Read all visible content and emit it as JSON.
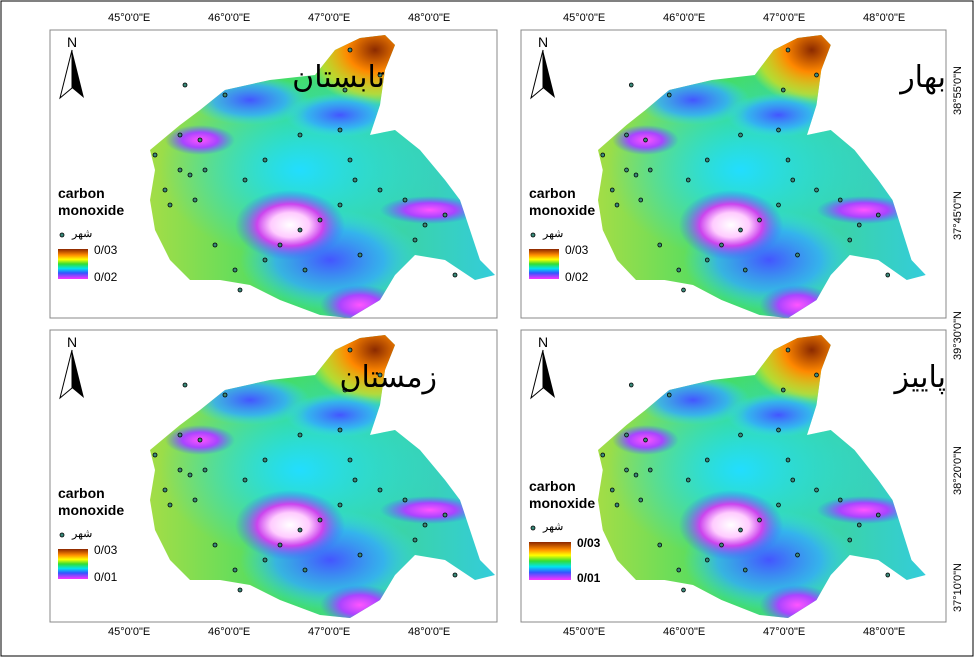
{
  "top_axis_labels": [
    "45°0'0\"E",
    "46°0'0\"E",
    "47°0'0\"E",
    "48°0'0\"E",
    "45°0'0\"E",
    "46°0'0\"E",
    "47°0'0\"E",
    "48°0'0\"E"
  ],
  "bottom_axis_labels": [
    "45°0'0\"E",
    "46°0'0\"E",
    "47°0'0\"E",
    "48°0'0\"E",
    "45°0'0\"E",
    "46°0'0\"E",
    "47°0'0\"E",
    "48°0'0\"E"
  ],
  "right_axis_labels": [
    "38°55'0\"N",
    "37°45'0\"N",
    "39°30'0\"N",
    "38°20'0\"N",
    "37°10'0\"N"
  ],
  "panels": [
    {
      "season": "تابستان",
      "north": "N",
      "legend_title": "carbon monoxide",
      "city_label": "شهر",
      "high": "0/03",
      "low": "0/02"
    },
    {
      "season": "بهار",
      "north": "N",
      "legend_title": "carbon monoxide",
      "city_label": "شهر",
      "high": "0/03",
      "low": "0/02"
    },
    {
      "season": "زمستان",
      "north": "N",
      "legend_title": "carbon monoxide",
      "city_label": "شهر",
      "high": "0/03",
      "low": "0/01"
    },
    {
      "season": "پاییز",
      "north": "N",
      "legend_title": "carbon monoxide",
      "city_label": "شهر",
      "high": "0/03",
      "low": "0/01"
    }
  ]
}
